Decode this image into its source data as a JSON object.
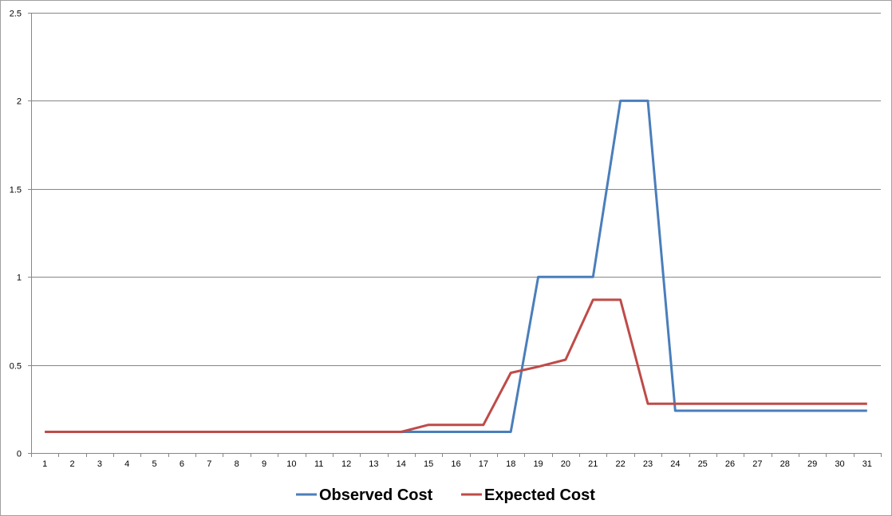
{
  "chart_data": {
    "type": "line",
    "title": "",
    "xlabel": "",
    "ylabel": "",
    "categories": [
      "1",
      "2",
      "3",
      "4",
      "5",
      "6",
      "7",
      "8",
      "9",
      "10",
      "11",
      "12",
      "13",
      "14",
      "15",
      "16",
      "17",
      "18",
      "19",
      "20",
      "21",
      "22",
      "23",
      "24",
      "25",
      "26",
      "27",
      "28",
      "29",
      "30",
      "31"
    ],
    "ylim": [
      0,
      2.5
    ],
    "yticks": [
      "0",
      "0.5",
      "1",
      "1.5",
      "2",
      "2.5"
    ],
    "grid": "horizontal",
    "legend_position": "bottom",
    "series": [
      {
        "name": "Observed Cost",
        "color": "#4a7ebb",
        "values": [
          0.12,
          0.12,
          0.12,
          0.12,
          0.12,
          0.12,
          0.12,
          0.12,
          0.12,
          0.12,
          0.12,
          0.12,
          0.12,
          0.12,
          0.12,
          0.12,
          0.12,
          0.12,
          1,
          1,
          1,
          2,
          2,
          0.24,
          0.24,
          0.24,
          0.24,
          0.24,
          0.24,
          0.24,
          0.24
        ]
      },
      {
        "name": "Expected Cost",
        "color": "#be4b48",
        "values": [
          0.12,
          0.12,
          0.12,
          0.12,
          0.12,
          0.12,
          0.12,
          0.12,
          0.12,
          0.12,
          0.12,
          0.12,
          0.12,
          0.12,
          0.16,
          0.16,
          0.16,
          0.455,
          0.49,
          0.53,
          0.87,
          0.87,
          0.28,
          0.28,
          0.28,
          0.28,
          0.28,
          0.28,
          0.28,
          0.28,
          0.28
        ]
      }
    ]
  }
}
